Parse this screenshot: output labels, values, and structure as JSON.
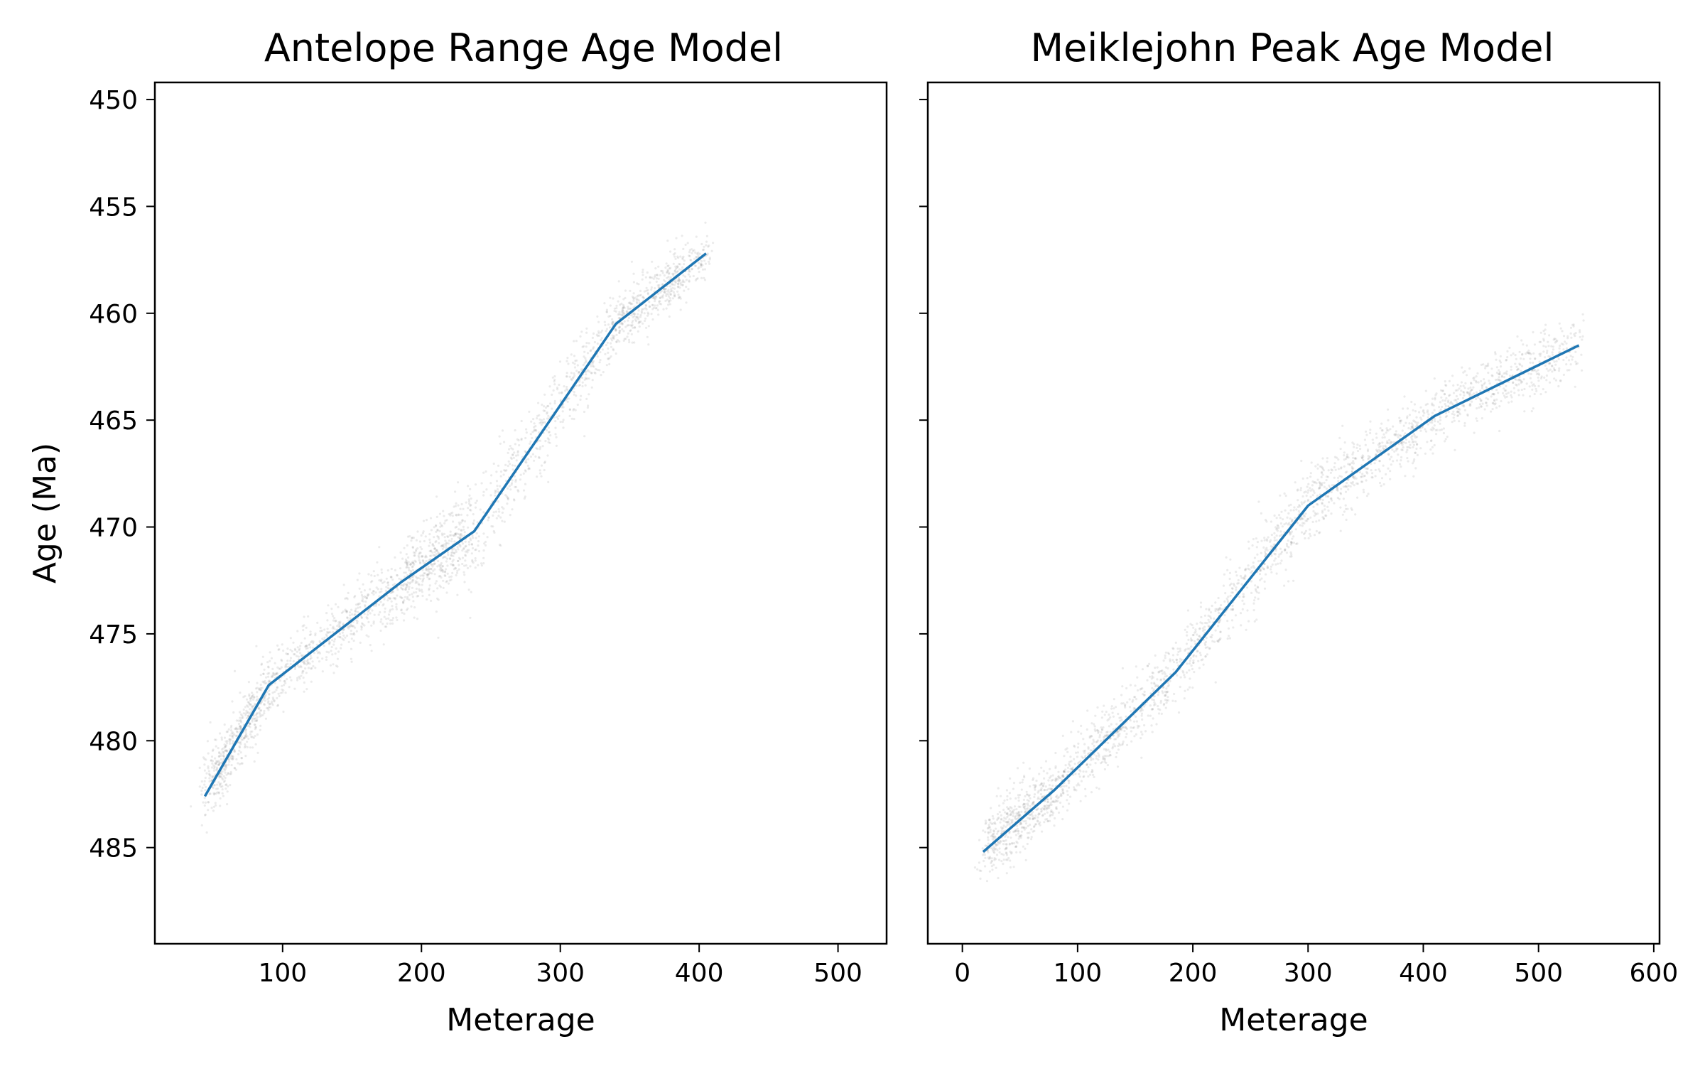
{
  "chart_data": [
    {
      "type": "line",
      "title": "Antelope Range Age Model",
      "xlabel": "Meterage",
      "ylabel": "Age (Ma)",
      "xlim": [
        8,
        535
      ],
      "ylim": [
        489.5,
        449.2
      ],
      "y_inverted": true,
      "xticks": [
        100,
        200,
        300,
        400,
        500
      ],
      "yticks": [
        450,
        455,
        460,
        465,
        470,
        475,
        480,
        485
      ],
      "grid": false,
      "series": [
        {
          "x": [
            44,
            90,
            185,
            238,
            340,
            405
          ],
          "y": [
            482.6,
            477.4,
            472.6,
            470.2,
            460.5,
            457.2
          ],
          "color": "#1f77b4",
          "uncertainty_half_width": [
            1.2,
            1.0,
            1.4,
            1.7,
            1.1,
            0.9
          ]
        }
      ],
      "scatter_color": "#808080"
    },
    {
      "type": "line",
      "title": "Meiklejohn Peak Age Model",
      "xlabel": "Meterage",
      "ylabel": "",
      "xlim": [
        -30,
        605
      ],
      "ylim": [
        489.5,
        449.2
      ],
      "y_inverted": true,
      "xticks": [
        0,
        100,
        200,
        300,
        400,
        500,
        600
      ],
      "yticks": [
        450,
        455,
        460,
        465,
        470,
        475,
        480,
        485
      ],
      "show_ytick_labels": false,
      "grid": false,
      "series": [
        {
          "x": [
            18,
            80,
            185,
            300,
            410,
            535
          ],
          "y": [
            485.2,
            482.3,
            476.8,
            469.0,
            464.8,
            461.5
          ],
          "color": "#1f77b4",
          "uncertainty_half_width": [
            1.3,
            1.2,
            1.3,
            1.4,
            1.1,
            1.2
          ]
        }
      ],
      "scatter_color": "#808080"
    }
  ]
}
